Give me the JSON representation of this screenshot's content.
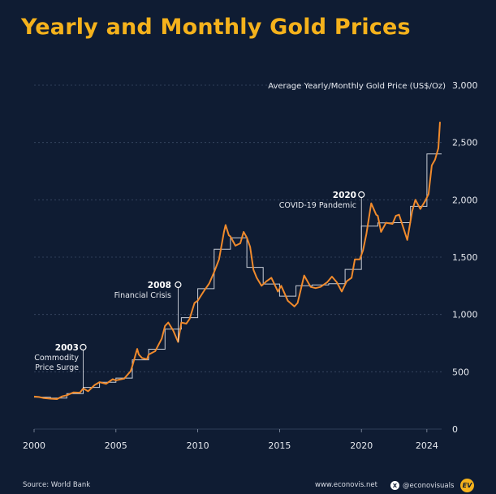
{
  "title": "Yearly and Monthly Gold Prices",
  "source": "Source: World Bank",
  "site": "www.econovis.net",
  "social": "@econovisuals",
  "logo_text": "EV",
  "icons": {
    "social": "x-logo-icon",
    "brand": "econovis-logo-icon"
  },
  "colors": {
    "background": "#0f1c33",
    "title": "#f5b21c",
    "monthly_line": "#f08a2c",
    "yearly_line": "#c9ced8",
    "grid": "#3b4a66"
  },
  "chart_data": {
    "type": "line",
    "title": "Yearly and Monthly Gold Prices",
    "ylabel": "Average Yearly/Monthly Gold Price (US$/Oz)",
    "xlabel": "",
    "xlim": [
      2000,
      2024.9
    ],
    "ylim": [
      0,
      3000
    ],
    "x_ticks": [
      2000,
      2005,
      2010,
      2015,
      2020,
      2024
    ],
    "y_ticks": [
      0,
      500,
      1000,
      1500,
      2000,
      2500,
      3000
    ],
    "y_tick_labels": [
      "0",
      "500",
      "1,000",
      "1,500",
      "2,000",
      "2,500",
      "3,000"
    ],
    "grid": "horizontal dashed",
    "series": [
      {
        "style": "monthly",
        "x": [
          2000.0,
          2000.3,
          2000.6,
          2001.0,
          2001.4,
          2001.7,
          2002.0,
          2002.4,
          2002.8,
          2003.0,
          2003.3,
          2003.7,
          2004.0,
          2004.4,
          2004.8,
          2005.0,
          2005.5,
          2005.9,
          2006.0,
          2006.3,
          2006.4,
          2006.6,
          2006.9,
          2007.0,
          2007.4,
          2007.8,
          2008.0,
          2008.2,
          2008.5,
          2008.8,
          2009.0,
          2009.3,
          2009.5,
          2009.8,
          2010.0,
          2010.4,
          2010.7,
          2011.0,
          2011.3,
          2011.6,
          2011.7,
          2011.9,
          2012.0,
          2012.3,
          2012.6,
          2012.8,
          2013.0,
          2013.2,
          2013.4,
          2013.6,
          2013.9,
          2014.2,
          2014.5,
          2014.9,
          2015.1,
          2015.5,
          2015.9,
          2016.1,
          2016.5,
          2016.9,
          2017.2,
          2017.5,
          2017.9,
          2018.2,
          2018.5,
          2018.8,
          2019.1,
          2019.4,
          2019.6,
          2019.9,
          2020.1,
          2020.3,
          2020.6,
          2020.9,
          2021.0,
          2021.2,
          2021.5,
          2021.9,
          2022.1,
          2022.3,
          2022.6,
          2022.8,
          2023.1,
          2023.3,
          2023.6,
          2023.9,
          2024.1,
          2024.3,
          2024.5,
          2024.7,
          2024.8
        ],
        "values": [
          284,
          280,
          270,
          265,
          262,
          285,
          295,
          320,
          318,
          355,
          330,
          385,
          410,
          395,
          435,
          425,
          440,
          505,
          550,
          700,
          650,
          620,
          610,
          650,
          680,
          790,
          900,
          930,
          860,
          760,
          930,
          920,
          960,
          1100,
          1120,
          1210,
          1270,
          1370,
          1480,
          1720,
          1780,
          1690,
          1680,
          1600,
          1620,
          1720,
          1670,
          1590,
          1390,
          1320,
          1250,
          1290,
          1320,
          1200,
          1250,
          1120,
          1070,
          1100,
          1340,
          1240,
          1230,
          1240,
          1280,
          1330,
          1280,
          1200,
          1290,
          1320,
          1480,
          1480,
          1560,
          1700,
          1970,
          1870,
          1860,
          1720,
          1800,
          1790,
          1860,
          1870,
          1740,
          1650,
          1900,
          2000,
          1920,
          1990,
          2050,
          2300,
          2350,
          2450,
          2680
        ]
      },
      {
        "style": "yearly",
        "values": [
          279,
          271,
          310,
          364,
          409,
          445,
          604,
          697,
          872,
          972,
          1225,
          1569,
          1669,
          1411,
          1266,
          1160,
          1251,
          1257,
          1268,
          1393,
          1770,
          1799,
          1801,
          1943,
          2400
        ]
      }
    ],
    "annotations": [
      {
        "year": "2003",
        "label_lines": [
          "Commodity",
          "Price Surge"
        ],
        "x": 2003.0,
        "y": 355
      },
      {
        "year": "2008",
        "label_lines": [
          "Financial Crisis"
        ],
        "x": 2008.8,
        "y": 760
      },
      {
        "year": "2020",
        "label_lines": [
          "COVID-19 Pandemic"
        ],
        "x": 2020.0,
        "y": 1560
      }
    ]
  }
}
